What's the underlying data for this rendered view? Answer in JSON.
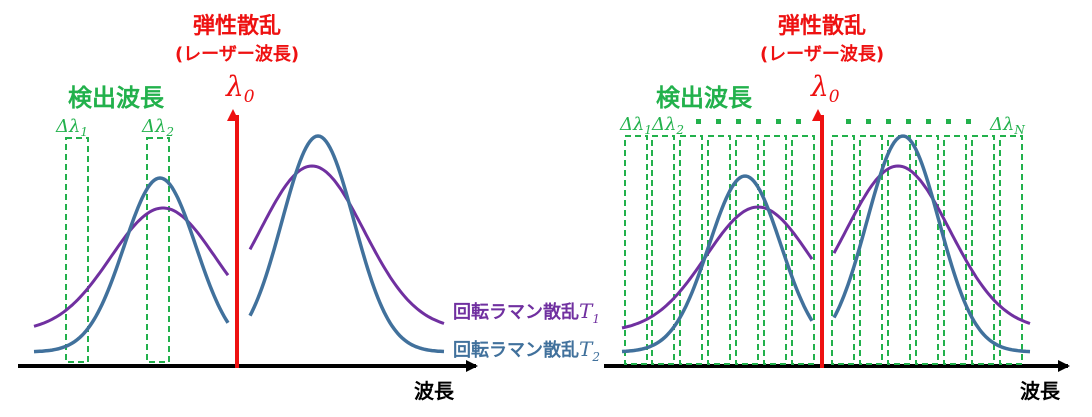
{
  "colors": {
    "elastic": "#ee1111",
    "detection": "#22b14c",
    "raman_t1": "#7030a0",
    "raman_t2": "#41719c",
    "axis": "#000000"
  },
  "left": {
    "elastic_title": "弾性散乱",
    "elastic_subtitle": "(レーザー波長)",
    "lambda0_symbol": "λ",
    "lambda0_sub": "0",
    "detection_title": "検出波長",
    "delta1_symbol": "Δλ",
    "delta1_sub": "1",
    "delta2_symbol": "Δλ",
    "delta2_sub": "2",
    "axis_label": "波長",
    "legend_t1_text": "回転ラマン散乱",
    "legend_t1_symbol": "T",
    "legend_t1_sub": "1",
    "legend_t2_text": "回転ラマン散乱",
    "legend_t2_symbol": "T",
    "legend_t2_sub": "2"
  },
  "right": {
    "elastic_title": "弾性散乱",
    "elastic_subtitle": "(レーザー波長)",
    "lambda0_symbol": "λ",
    "lambda0_sub": "0",
    "detection_title": "検出波長",
    "delta1_symbol": "Δλ",
    "delta1_sub": "1",
    "delta2_symbol": "Δλ",
    "delta2_sub": "2",
    "deltaN_symbol": "Δλ",
    "deltaN_sub": "N",
    "axis_label": "波長"
  }
}
